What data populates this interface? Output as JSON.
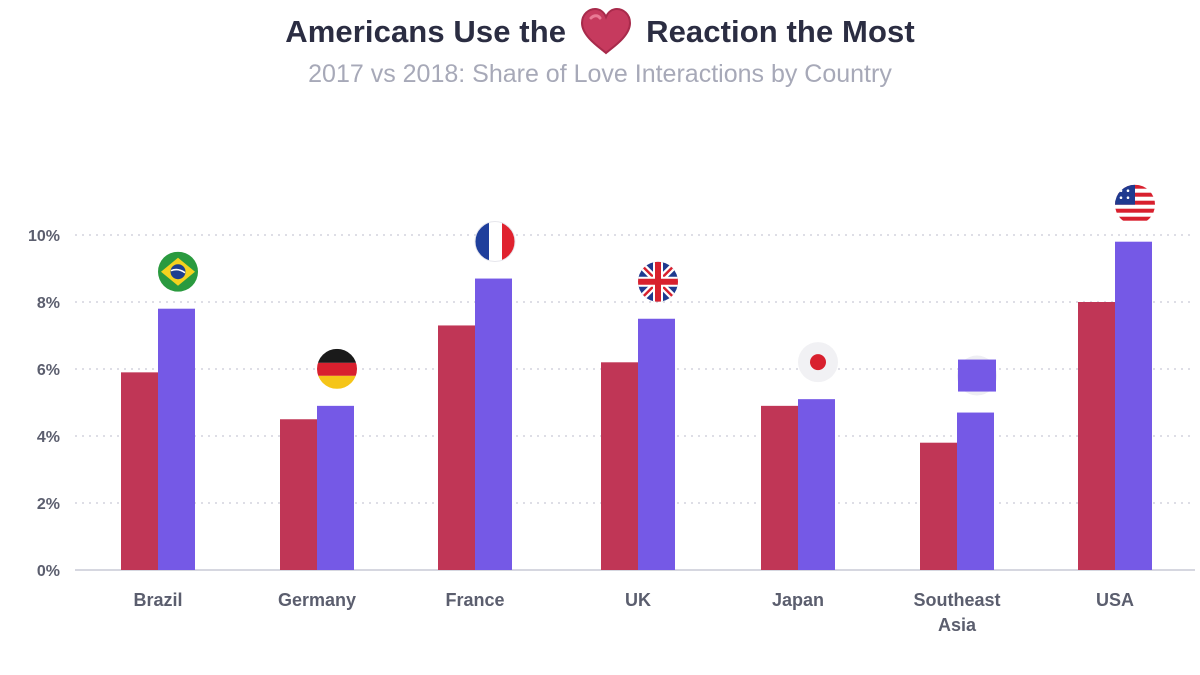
{
  "title_before": "Americans Use the",
  "title_after": "Reaction the Most",
  "title_icon": "heart-icon",
  "subtitle": "2017 vs 2018: Share of Love Interactions by Country",
  "colors": {
    "series_2017": "#c03656",
    "series_2018": "#7559e6",
    "heart": "#c63a5e"
  },
  "chart_data": {
    "type": "bar",
    "title": "Americans Use the Reaction the Most",
    "subtitle": "2017 vs 2018: Share of Love Interactions by Country",
    "categories": [
      "Brazil",
      "Germany",
      "France",
      "UK",
      "Japan",
      "Southeast Asia",
      "USA"
    ],
    "category_lines": [
      [
        "Brazil"
      ],
      [
        "Germany"
      ],
      [
        "France"
      ],
      [
        "UK"
      ],
      [
        "Japan"
      ],
      [
        "Southeast",
        "Asia"
      ],
      [
        "USA"
      ]
    ],
    "flags": [
      "brazil-flag-icon",
      "germany-flag-icon",
      "france-flag-icon",
      "uk-flag-icon",
      "japan-flag-icon",
      "southeast-asia-flag-icon",
      "usa-flag-icon"
    ],
    "series": [
      {
        "values": [
          5.9,
          4.5,
          7.3,
          6.2,
          4.9,
          3.8,
          8.0
        ]
      },
      {
        "values": [
          7.8,
          4.9,
          8.7,
          7.5,
          5.1,
          4.7,
          9.8
        ]
      }
    ],
    "y_ticks": [
      "0%",
      "2%",
      "4%",
      "6%",
      "8%",
      "10%"
    ],
    "y_tick_values": [
      0,
      2,
      4,
      6,
      8,
      10
    ],
    "ylim": [
      0,
      10
    ],
    "xlabel": "",
    "ylabel": "",
    "grid": true,
    "legend": "none"
  }
}
